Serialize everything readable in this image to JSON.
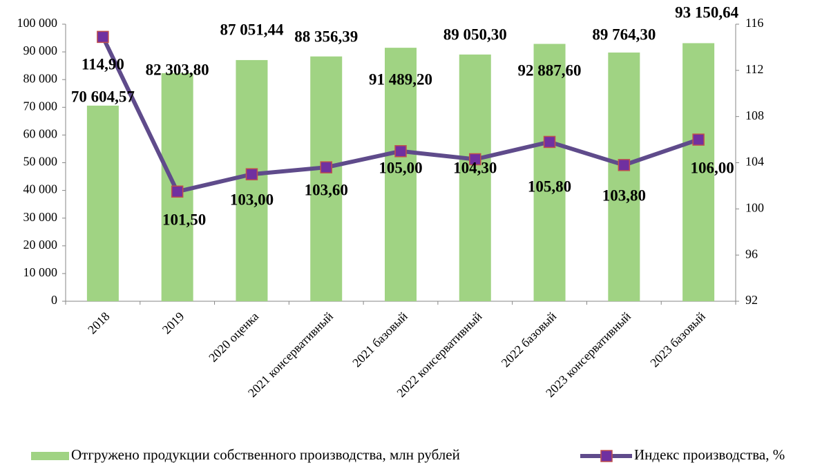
{
  "chart_data": {
    "type": "bar_line",
    "categories": [
      "2018",
      "2019",
      "2020 оценка",
      "2021 консервативный",
      "2021 базовый",
      "2022 консервативный",
      "2022 базовый",
      "2023 консервативный",
      "2023 базовый"
    ],
    "series": [
      {
        "name": "Отгружено продукции собственного производства, млн рублей",
        "type": "bar",
        "color": "#a0d383",
        "values": [
          70604.57,
          82303.8,
          87051.44,
          88356.39,
          91489.2,
          89050.3,
          92887.6,
          89764.3,
          93150.64
        ],
        "value_labels": [
          "70 604,57",
          "82 303,80",
          "87 051,44",
          "88 356,39",
          "91 489,20",
          "89 050,30",
          "92 887,60",
          "89 764,30",
          "93 150,64"
        ]
      },
      {
        "name": "Индекс производства, %",
        "type": "line",
        "axis": "y2",
        "color": "#5f4b8b",
        "marker_color": "#7030a0",
        "marker_edge": "#c0504d",
        "values": [
          114.9,
          101.5,
          103.0,
          103.6,
          105.0,
          104.3,
          105.8,
          103.8,
          106.0
        ],
        "value_labels": [
          "114,90",
          "101,50",
          "103,00",
          "103,60",
          "105,00",
          "104,30",
          "105,80",
          "103,80",
          "106,00"
        ]
      }
    ],
    "ylim": [
      0,
      100000
    ],
    "yticks": [
      0,
      {
        "value": 10000,
        "label": "10 000"
      },
      {
        "value": 20000,
        "label": "20 000"
      },
      {
        "value": 30000,
        "label": "30 000"
      },
      {
        "value": 40000,
        "label": "40 000"
      },
      {
        "value": 50000,
        "label": "50 000"
      },
      {
        "value": 60000,
        "label": "60 000"
      },
      {
        "value": 70000,
        "label": "70 000"
      },
      {
        "value": 80000,
        "label": "80 000"
      },
      {
        "value": 90000,
        "label": "90 000"
      },
      {
        "value": 100000,
        "label": "100 000"
      }
    ],
    "y2lim": [
      92,
      116
    ],
    "y2ticks": [
      92,
      96,
      100,
      104,
      108,
      112,
      116
    ],
    "legend": "bottom"
  }
}
